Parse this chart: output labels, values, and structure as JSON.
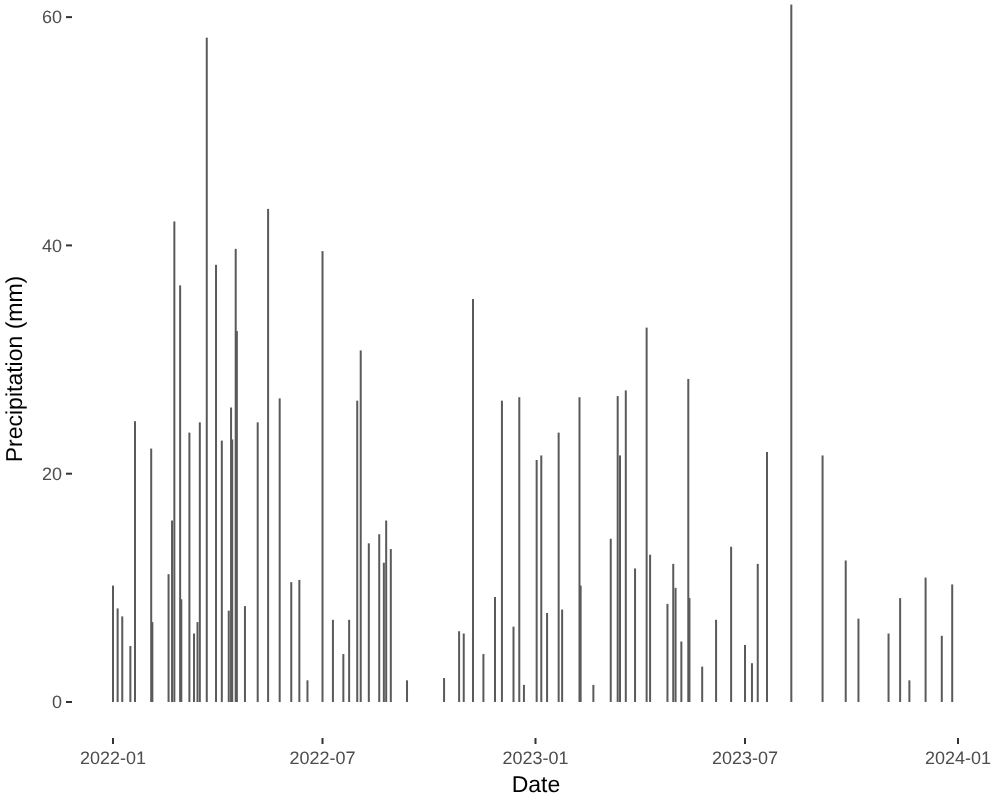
{
  "chart_data": {
    "type": "bar",
    "xlabel": "Date",
    "ylabel": "Precipitation (mm)",
    "color": "#5a5a5a",
    "grid": false,
    "xlim": [
      "2022-01",
      "2024-01"
    ],
    "xticks": [
      "2022-01",
      "2022-07",
      "2023-01",
      "2023-07",
      "2024-01"
    ],
    "ylim": [
      0,
      61.5
    ],
    "yticks": [
      0,
      20,
      40,
      60
    ],
    "x": [
      "2022-01-01",
      "2022-01-05",
      "2022-01-09",
      "2022-01-16",
      "2022-01-20",
      "2022-02-03",
      "2022-02-04",
      "2022-02-18",
      "2022-02-21",
      "2022-02-23",
      "2022-02-28",
      "2022-03-01",
      "2022-03-08",
      "2022-03-12",
      "2022-03-15",
      "2022-03-17",
      "2022-03-23",
      "2022-03-31",
      "2022-04-05",
      "2022-04-11",
      "2022-04-13",
      "2022-04-14",
      "2022-04-17",
      "2022-04-18",
      "2022-04-25",
      "2022-05-06",
      "2022-05-15",
      "2022-05-25",
      "2022-06-04",
      "2022-06-11",
      "2022-06-18",
      "2022-07-01",
      "2022-07-10",
      "2022-07-19",
      "2022-07-24",
      "2022-07-31",
      "2022-08-03",
      "2022-08-10",
      "2022-08-19",
      "2022-08-23",
      "2022-08-25",
      "2022-08-29",
      "2022-09-12",
      "2022-10-14",
      "2022-10-27",
      "2022-10-31",
      "2022-11-08",
      "2022-11-17",
      "2022-11-27",
      "2022-12-03",
      "2022-12-13",
      "2022-12-18",
      "2022-12-22",
      "2023-01-02",
      "2023-01-06",
      "2023-01-11",
      "2023-01-21",
      "2023-01-24",
      "2023-02-08",
      "2023-02-09",
      "2023-02-20",
      "2023-03-07",
      "2023-03-13",
      "2023-03-15",
      "2023-03-20",
      "2023-03-28",
      "2023-04-07",
      "2023-04-10",
      "2023-04-25",
      "2023-04-30",
      "2023-05-02",
      "2023-05-07",
      "2023-05-13",
      "2023-05-14",
      "2023-05-25",
      "2023-06-06",
      "2023-06-19",
      "2023-07-01",
      "2023-07-07",
      "2023-07-12",
      "2023-07-20",
      "2023-08-10",
      "2023-09-06",
      "2023-09-26",
      "2023-10-07",
      "2023-11-02",
      "2023-11-12",
      "2023-11-20",
      "2023-12-04",
      "2023-12-18",
      "2023-12-27"
    ],
    "values": [
      10.2,
      8.2,
      7.5,
      4.9,
      24.6,
      22.2,
      7,
      11.2,
      15.9,
      42.1,
      36.5,
      9,
      23.6,
      6,
      7,
      24.5,
      58.2,
      38.3,
      22.9,
      8,
      25.8,
      23,
      39.7,
      32.5,
      8.4,
      24.5,
      43.2,
      26.6,
      10.5,
      10.7,
      1.9,
      39.5,
      7.2,
      4.2,
      7.2,
      26.4,
      30.8,
      13.9,
      14.7,
      12.2,
      15.9,
      13.4,
      1.9,
      2.1,
      6.2,
      6,
      35.3,
      4.2,
      9.2,
      26.4,
      6.6,
      26.7,
      1.5,
      21.2,
      21.6,
      7.8,
      23.6,
      8.1,
      26.7,
      10.2,
      1.5,
      14.3,
      26.8,
      21.6,
      27.3,
      11.7,
      32.8,
      12.9,
      8.6,
      12.1,
      10,
      5.3,
      28.3,
      9.1,
      3.1,
      7.2,
      13.6,
      5,
      3.4,
      12.1,
      21.9,
      61.1,
      21.6,
      12.4,
      7.3,
      6,
      9.1,
      1.9,
      10.9,
      5.8,
      10.3
    ]
  }
}
